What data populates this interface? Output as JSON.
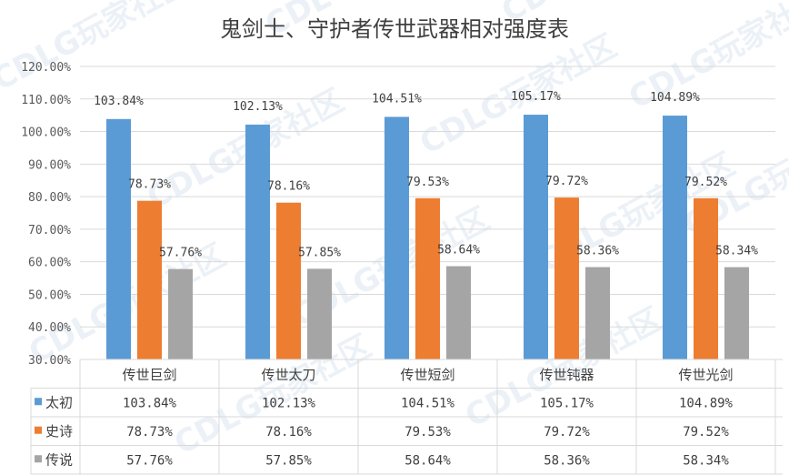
{
  "chart_data": {
    "type": "bar",
    "title": "鬼剑士、守护者传世武器相对强度表",
    "categories": [
      "传世巨剑",
      "传世太刀",
      "传世短剑",
      "传世钝器",
      "传世光剑"
    ],
    "series": [
      {
        "name": "太初",
        "color": "#5b9bd5",
        "values": [
          103.84,
          102.13,
          104.51,
          105.17,
          104.89
        ],
        "labels": [
          "103.84%",
          "102.13%",
          "104.51%",
          "105.17%",
          "104.89%"
        ]
      },
      {
        "name": "史诗",
        "color": "#ed7d31",
        "values": [
          78.73,
          78.16,
          79.53,
          79.72,
          79.52
        ],
        "labels": [
          "78.73%",
          "78.16%",
          "79.53%",
          "79.72%",
          "79.52%"
        ]
      },
      {
        "name": "传说",
        "color": "#a5a5a5",
        "values": [
          57.76,
          57.85,
          58.64,
          58.36,
          58.34
        ],
        "labels": [
          "57.76%",
          "57.85%",
          "58.64%",
          "58.36%",
          "58.34%"
        ]
      }
    ],
    "ylim": [
      30,
      120
    ],
    "yticks": [
      "30.00%",
      "40.00%",
      "50.00%",
      "60.00%",
      "70.00%",
      "80.00%",
      "90.00%",
      "100.00%",
      "110.00%",
      "120.00%"
    ],
    "grid": true,
    "legend": "data-table"
  },
  "watermark": "CDLG玩家社区"
}
